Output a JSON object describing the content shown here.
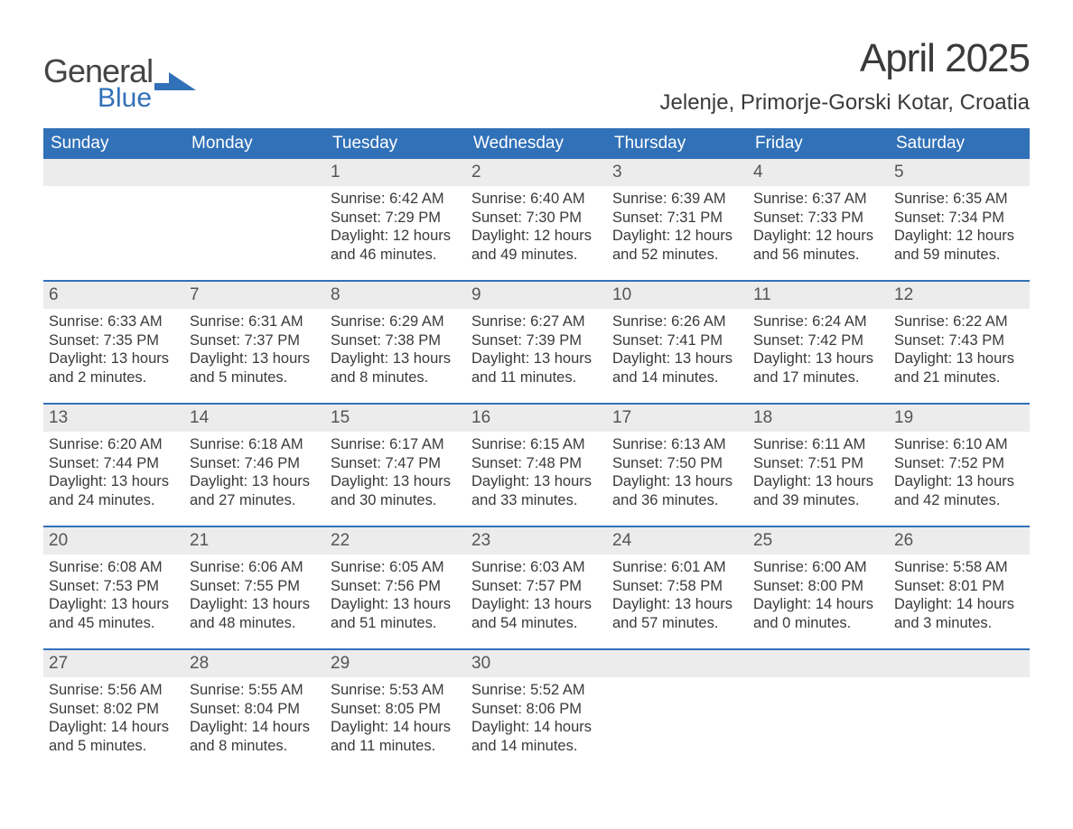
{
  "logo": {
    "general": "General",
    "blue": "Blue",
    "mark_color": "#3171b8"
  },
  "title": "April 2025",
  "location": "Jelenje, Primorje-Gorski Kotar, Croatia",
  "colors": {
    "header_bg": "#3171b8",
    "header_text": "#ffffff",
    "daynum_bg": "#ececec",
    "week_border": "#3171b8",
    "body_bg": "#ffffff",
    "text": "#3a3a3a"
  },
  "typography": {
    "title_fontsize": 44,
    "location_fontsize": 24,
    "dow_fontsize": 19,
    "daynum_fontsize": 19,
    "body_fontsize": 16.5
  },
  "days_of_week": [
    "Sunday",
    "Monday",
    "Tuesday",
    "Wednesday",
    "Thursday",
    "Friday",
    "Saturday"
  ],
  "labels": {
    "sunrise": "Sunrise:",
    "sunset": "Sunset:",
    "daylight": "Daylight:"
  },
  "weeks": [
    [
      {
        "blank": true
      },
      {
        "blank": true
      },
      {
        "day": "1",
        "sunrise": "6:42 AM",
        "sunset": "7:29 PM",
        "daylight": "12 hours and 46 minutes."
      },
      {
        "day": "2",
        "sunrise": "6:40 AM",
        "sunset": "7:30 PM",
        "daylight": "12 hours and 49 minutes."
      },
      {
        "day": "3",
        "sunrise": "6:39 AM",
        "sunset": "7:31 PM",
        "daylight": "12 hours and 52 minutes."
      },
      {
        "day": "4",
        "sunrise": "6:37 AM",
        "sunset": "7:33 PM",
        "daylight": "12 hours and 56 minutes."
      },
      {
        "day": "5",
        "sunrise": "6:35 AM",
        "sunset": "7:34 PM",
        "daylight": "12 hours and 59 minutes."
      }
    ],
    [
      {
        "day": "6",
        "sunrise": "6:33 AM",
        "sunset": "7:35 PM",
        "daylight": "13 hours and 2 minutes."
      },
      {
        "day": "7",
        "sunrise": "6:31 AM",
        "sunset": "7:37 PM",
        "daylight": "13 hours and 5 minutes."
      },
      {
        "day": "8",
        "sunrise": "6:29 AM",
        "sunset": "7:38 PM",
        "daylight": "13 hours and 8 minutes."
      },
      {
        "day": "9",
        "sunrise": "6:27 AM",
        "sunset": "7:39 PM",
        "daylight": "13 hours and 11 minutes."
      },
      {
        "day": "10",
        "sunrise": "6:26 AM",
        "sunset": "7:41 PM",
        "daylight": "13 hours and 14 minutes."
      },
      {
        "day": "11",
        "sunrise": "6:24 AM",
        "sunset": "7:42 PM",
        "daylight": "13 hours and 17 minutes."
      },
      {
        "day": "12",
        "sunrise": "6:22 AM",
        "sunset": "7:43 PM",
        "daylight": "13 hours and 21 minutes."
      }
    ],
    [
      {
        "day": "13",
        "sunrise": "6:20 AM",
        "sunset": "7:44 PM",
        "daylight": "13 hours and 24 minutes."
      },
      {
        "day": "14",
        "sunrise": "6:18 AM",
        "sunset": "7:46 PM",
        "daylight": "13 hours and 27 minutes."
      },
      {
        "day": "15",
        "sunrise": "6:17 AM",
        "sunset": "7:47 PM",
        "daylight": "13 hours and 30 minutes."
      },
      {
        "day": "16",
        "sunrise": "6:15 AM",
        "sunset": "7:48 PM",
        "daylight": "13 hours and 33 minutes."
      },
      {
        "day": "17",
        "sunrise": "6:13 AM",
        "sunset": "7:50 PM",
        "daylight": "13 hours and 36 minutes."
      },
      {
        "day": "18",
        "sunrise": "6:11 AM",
        "sunset": "7:51 PM",
        "daylight": "13 hours and 39 minutes."
      },
      {
        "day": "19",
        "sunrise": "6:10 AM",
        "sunset": "7:52 PM",
        "daylight": "13 hours and 42 minutes."
      }
    ],
    [
      {
        "day": "20",
        "sunrise": "6:08 AM",
        "sunset": "7:53 PM",
        "daylight": "13 hours and 45 minutes."
      },
      {
        "day": "21",
        "sunrise": "6:06 AM",
        "sunset": "7:55 PM",
        "daylight": "13 hours and 48 minutes."
      },
      {
        "day": "22",
        "sunrise": "6:05 AM",
        "sunset": "7:56 PM",
        "daylight": "13 hours and 51 minutes."
      },
      {
        "day": "23",
        "sunrise": "6:03 AM",
        "sunset": "7:57 PM",
        "daylight": "13 hours and 54 minutes."
      },
      {
        "day": "24",
        "sunrise": "6:01 AM",
        "sunset": "7:58 PM",
        "daylight": "13 hours and 57 minutes."
      },
      {
        "day": "25",
        "sunrise": "6:00 AM",
        "sunset": "8:00 PM",
        "daylight": "14 hours and 0 minutes."
      },
      {
        "day": "26",
        "sunrise": "5:58 AM",
        "sunset": "8:01 PM",
        "daylight": "14 hours and 3 minutes."
      }
    ],
    [
      {
        "day": "27",
        "sunrise": "5:56 AM",
        "sunset": "8:02 PM",
        "daylight": "14 hours and 5 minutes."
      },
      {
        "day": "28",
        "sunrise": "5:55 AM",
        "sunset": "8:04 PM",
        "daylight": "14 hours and 8 minutes."
      },
      {
        "day": "29",
        "sunrise": "5:53 AM",
        "sunset": "8:05 PM",
        "daylight": "14 hours and 11 minutes."
      },
      {
        "day": "30",
        "sunrise": "5:52 AM",
        "sunset": "8:06 PM",
        "daylight": "14 hours and 14 minutes."
      },
      {
        "blank": true
      },
      {
        "blank": true
      },
      {
        "blank": true
      }
    ]
  ]
}
